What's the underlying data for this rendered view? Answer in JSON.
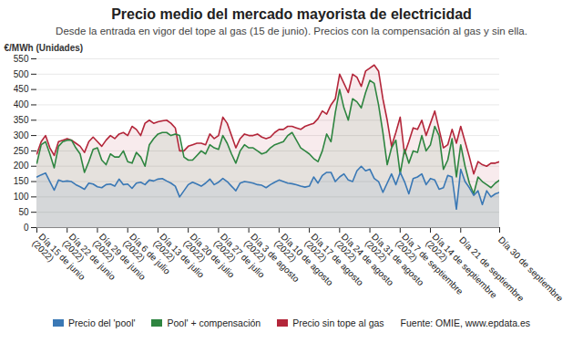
{
  "chart_data": {
    "type": "area",
    "title": "Precio medio del mercado mayorista de electricidad",
    "subtitle": "Desde la entrada en vigor del tope al gas (15 de junio). Precios con la compensación al gas y sin ella.",
    "y_label": "€/MWh (Unidades)",
    "source": "Fuente: OMIE, www.epdata.es",
    "categories": [
      "Día 15 de junio (2022)",
      null,
      null,
      null,
      null,
      null,
      null,
      "Día 22 de junio (2022)",
      null,
      null,
      null,
      null,
      null,
      null,
      "Día 29 de junio (2022)",
      null,
      null,
      null,
      null,
      null,
      null,
      "Día 6 de julio (2022)",
      null,
      null,
      null,
      null,
      null,
      null,
      "Día 13 de julio (2022)",
      null,
      null,
      null,
      null,
      null,
      null,
      "Día 20 de julio (2022)",
      null,
      null,
      null,
      null,
      null,
      null,
      "Día 27 de julio (2022)",
      null,
      null,
      null,
      null,
      null,
      null,
      "Día 3 de agosto (2022)",
      null,
      null,
      null,
      null,
      null,
      null,
      "Día 10 de agosto (2022)",
      null,
      null,
      null,
      null,
      null,
      null,
      "Día 17 de agosto (2022)",
      null,
      null,
      null,
      null,
      null,
      null,
      "Día 24 de agosto (2022)",
      null,
      null,
      null,
      null,
      null,
      null,
      "Día 31 de agosto (2022)",
      null,
      null,
      null,
      null,
      null,
      null,
      "Día 7 de septiembre (2022)",
      null,
      null,
      null,
      null,
      null,
      null,
      "Día 14 de septiembre (2022)",
      null,
      null,
      null,
      null,
      null,
      null,
      "Día 21 de septiembre",
      null,
      null,
      null,
      null,
      null,
      null,
      null,
      null,
      "Día 30 de septiembre"
    ],
    "series": [
      {
        "name": "Precio sin tope al gas",
        "color": "#b3263a",
        "values": [
          240,
          280,
          300,
          260,
          235,
          280,
          285,
          290,
          285,
          275,
          265,
          245,
          280,
          295,
          280,
          265,
          285,
          300,
          290,
          305,
          310,
          300,
          330,
          320,
          300,
          340,
          350,
          340,
          345,
          348,
          350,
          340,
          325,
          250,
          250,
          265,
          270,
          275,
          275,
          270,
          305,
          290,
          300,
          360,
          340,
          300,
          260,
          290,
          305,
          300,
          300,
          305,
          295,
          290,
          295,
          310,
          320,
          320,
          330,
          330,
          325,
          320,
          330,
          335,
          340,
          355,
          380,
          370,
          400,
          420,
          500,
          470,
          440,
          500,
          490,
          460,
          510,
          520,
          530,
          510,
          420,
          350,
          265,
          310,
          360,
          240,
          280,
          325,
          320,
          350,
          300,
          340,
          380,
          320,
          260,
          270,
          320,
          275,
          330,
          280,
          230,
          175,
          215,
          205,
          200,
          210,
          210,
          215
        ]
      },
      {
        "name": "Pool' + compensación",
        "color": "#2e8540",
        "values": [
          210,
          270,
          280,
          240,
          195,
          265,
          280,
          285,
          285,
          260,
          240,
          180,
          215,
          255,
          260,
          220,
          205,
          240,
          230,
          230,
          250,
          215,
          210,
          245,
          230,
          200,
          270,
          290,
          305,
          310,
          310,
          300,
          305,
          300,
          230,
          220,
          220,
          235,
          250,
          240,
          270,
          260,
          255,
          300,
          275,
          240,
          210,
          250,
          270,
          260,
          260,
          250,
          240,
          245,
          260,
          270,
          275,
          280,
          300,
          310,
          285,
          260,
          250,
          240,
          225,
          215,
          250,
          305,
          280,
          375,
          450,
          390,
          350,
          420,
          410,
          390,
          440,
          480,
          470,
          400,
          310,
          205,
          260,
          285,
          175,
          255,
          210,
          250,
          245,
          300,
          250,
          270,
          330,
          300,
          190,
          220,
          290,
          165,
          270,
          200,
          145,
          110,
          165,
          150,
          140,
          130,
          145,
          155
        ]
      },
      {
        "name": "Precio del 'pool'",
        "color": "#3a78b5",
        "values": [
          165,
          172,
          178,
          150,
          122,
          155,
          150,
          152,
          150,
          140,
          133,
          125,
          145,
          142,
          133,
          130,
          140,
          142,
          135,
          158,
          140,
          142,
          128,
          145,
          148,
          140,
          155,
          152,
          158,
          160,
          152,
          145,
          135,
          100,
          120,
          140,
          148,
          142,
          135,
          145,
          158,
          140,
          148,
          160,
          150,
          135,
          120,
          145,
          150,
          148,
          145,
          140,
          138,
          130,
          140,
          148,
          155,
          150,
          145,
          143,
          140,
          135,
          132,
          135,
          165,
          145,
          170,
          180,
          180,
          150,
          165,
          175,
          155,
          150,
          185,
          200,
          185,
          190,
          160,
          150,
          115,
          145,
          175,
          140,
          180,
          150,
          110,
          160,
          165,
          175,
          140,
          160,
          155,
          125,
          130,
          170,
          165,
          60,
          190,
          150,
          130,
          105,
          120,
          75,
          120,
          100,
          110,
          115
        ]
      }
    ],
    "legend_order": [
      "Precio del 'pool'",
      "Pool' + compensación",
      "Precio sin tope al gas"
    ],
    "ylim": [
      0,
      550
    ],
    "yticks": [
      0,
      50,
      100,
      150,
      200,
      250,
      300,
      350,
      400,
      450,
      500,
      550
    ],
    "grid": true,
    "legend": "bottom"
  }
}
